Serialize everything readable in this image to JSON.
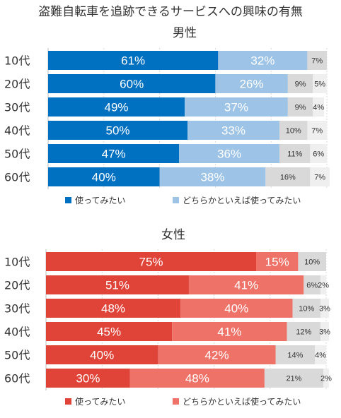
{
  "title": "盗難自転車を追跡できるサービスへの興味の有無",
  "chart_data": [
    {
      "type": "bar",
      "orientation": "horizontal",
      "stacked": true,
      "subtitle": "男性",
      "categories": [
        "10代",
        "20代",
        "30代",
        "40代",
        "50代",
        "60代"
      ],
      "xlim": [
        0,
        100
      ],
      "grid": true,
      "legend_position": "bottom",
      "series": [
        {
          "name": "使ってみたい",
          "color": "#0070c0",
          "values": [
            61,
            60,
            49,
            50,
            47,
            40
          ],
          "labels": [
            "61%",
            "60%",
            "49%",
            "50%",
            "47%",
            "40%"
          ]
        },
        {
          "name": "どちらかといえば使ってみたい",
          "color": "#9dc3e6",
          "values": [
            32,
            26,
            37,
            33,
            36,
            38
          ],
          "labels": [
            "32%",
            "26%",
            "37%",
            "33%",
            "36%",
            "38%"
          ]
        },
        {
          "color": "#d9d9d9",
          "values": [
            7,
            9,
            9,
            10,
            11,
            16
          ],
          "labels": [
            "7%",
            "9%",
            "9%",
            "10%",
            "11%",
            "16%"
          ]
        },
        {
          "color": "#efefef",
          "values": [
            0,
            5,
            4,
            7,
            6,
            7
          ],
          "labels": [
            "",
            "5%",
            "4%",
            "7%",
            "6%",
            "7%"
          ]
        }
      ]
    },
    {
      "type": "bar",
      "orientation": "horizontal",
      "stacked": true,
      "subtitle": "女性",
      "categories": [
        "10代",
        "20代",
        "30代",
        "40代",
        "50代",
        "60代"
      ],
      "xlim": [
        0,
        100
      ],
      "grid": true,
      "legend_position": "bottom",
      "series": [
        {
          "name": "使ってみたい",
          "color": "#e04338",
          "values": [
            75,
            51,
            48,
            45,
            40,
            30
          ],
          "labels": [
            "75%",
            "51%",
            "48%",
            "45%",
            "40%",
            "30%"
          ]
        },
        {
          "name": "どちらかといえば使ってみたい",
          "color": "#ee7268",
          "values": [
            15,
            41,
            40,
            41,
            42,
            48
          ],
          "labels": [
            "15%",
            "41%",
            "40%",
            "41%",
            "42%",
            "48%"
          ]
        },
        {
          "color": "#d9d9d9",
          "values": [
            10,
            6,
            10,
            12,
            14,
            21
          ],
          "labels": [
            "10%",
            "6%",
            "10%",
            "12%",
            "14%",
            "21%"
          ]
        },
        {
          "color": "#efefef",
          "values": [
            0,
            2,
            3,
            3,
            4,
            2
          ],
          "labels": [
            "",
            "2%",
            "3%",
            "3%",
            "4%",
            "2%"
          ]
        }
      ]
    }
  ]
}
